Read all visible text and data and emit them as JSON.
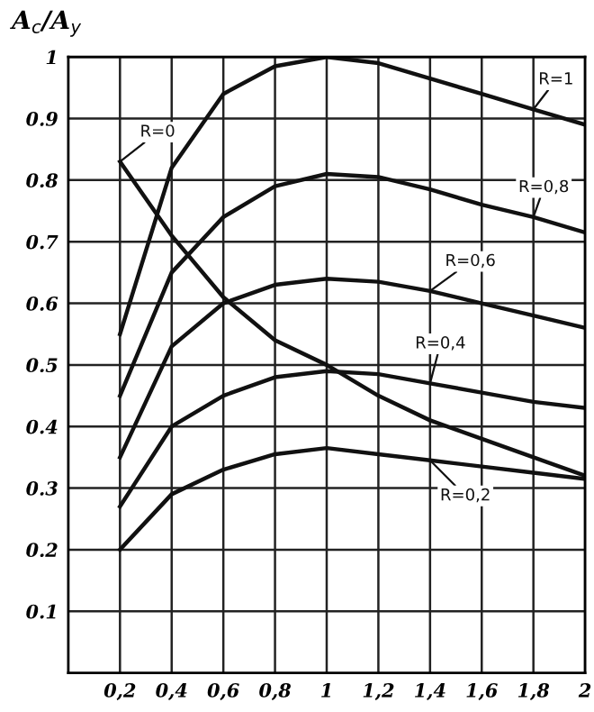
{
  "chart_data": {
    "type": "line",
    "ylabel": "A$_{c}$/A$_{y}$",
    "x": [
      0.2,
      0.4,
      0.6,
      0.8,
      1.0,
      1.2,
      1.4,
      1.6,
      1.8,
      2.0
    ],
    "series": [
      {
        "name": "R=1",
        "color": "#111111",
        "values": [
          0.55,
          0.82,
          0.94,
          0.985,
          1.0,
          0.99,
          0.965,
          0.94,
          0.915,
          0.89
        ]
      },
      {
        "name": "R=0,8",
        "color": "#111111",
        "values": [
          0.45,
          0.65,
          0.74,
          0.79,
          0.81,
          0.805,
          0.785,
          0.76,
          0.74,
          0.715
        ]
      },
      {
        "name": "R=0,6",
        "color": "#111111",
        "values": [
          0.35,
          0.53,
          0.6,
          0.63,
          0.64,
          0.635,
          0.62,
          0.6,
          0.58,
          0.56
        ]
      },
      {
        "name": "R=0,4",
        "color": "#111111",
        "values": [
          0.27,
          0.4,
          0.45,
          0.48,
          0.49,
          0.485,
          0.47,
          0.455,
          0.44,
          0.43
        ]
      },
      {
        "name": "R=0,2",
        "color": "#111111",
        "values": [
          0.2,
          0.29,
          0.33,
          0.355,
          0.365,
          0.355,
          0.345,
          0.335,
          0.325,
          0.315
        ]
      },
      {
        "name": "R=0",
        "color": "#111111",
        "values": [
          0.83,
          0.71,
          0.61,
          0.54,
          0.5,
          0.45,
          0.41,
          0.38,
          0.35,
          0.32
        ]
      }
    ],
    "xlim": [
      0,
      2
    ],
    "ylim": [
      0,
      1
    ],
    "xticks": [
      {
        "value": 0.2,
        "label": "0,2"
      },
      {
        "value": 0.4,
        "label": "0,4"
      },
      {
        "value": 0.6,
        "label": "0,6"
      },
      {
        "value": 0.8,
        "label": "0,8"
      },
      1,
      {
        "value": 1.2,
        "label": "1,2"
      },
      {
        "value": 1.4,
        "label": "1,4"
      },
      {
        "value": 1.6,
        "label": "1,6"
      },
      {
        "value": 1.8,
        "label": "1,8"
      },
      2
    ],
    "yticks": [
      0.1,
      0.2,
      0.3,
      0.4,
      0.5,
      0.6,
      0.7,
      0.8,
      0.9,
      1
    ],
    "grid": true,
    "marker": "none",
    "line_style": "solid"
  }
}
